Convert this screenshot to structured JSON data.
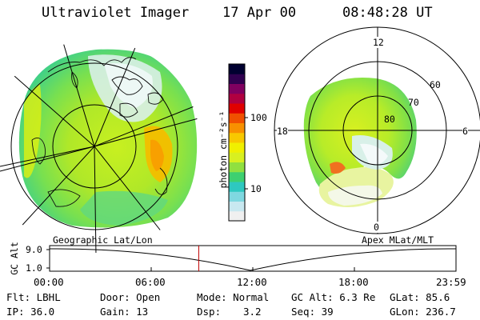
{
  "header": {
    "title": "Ultraviolet Imager",
    "date": "17 Apr 00",
    "time": "08:48:28 UT"
  },
  "left_panel": {
    "label": "Geographic Lat/Lon"
  },
  "right_panel": {
    "label": "Apex MLat/MLT",
    "mlt_labels": [
      "12",
      "18",
      "6",
      "0"
    ],
    "lat_labels": [
      "60",
      "70",
      "80"
    ]
  },
  "colorbar": {
    "unit_label": "photon cm⁻²s⁻¹",
    "ticks": [
      "100",
      "10"
    ],
    "colors": [
      "#f0f0f0",
      "#c8e8f0",
      "#7fd8e0",
      "#2ec8c0",
      "#3dd070",
      "#90e040",
      "#d8f020",
      "#f0f000",
      "#f8c800",
      "#f89000",
      "#f05000",
      "#e00000",
      "#b00040",
      "#800060",
      "#300050",
      "#000030"
    ]
  },
  "altitude_plot": {
    "axis_label": "GC Alt",
    "y_ticks": [
      "9.0",
      "1.0"
    ],
    "x_ticks": [
      "00:00",
      "06:00",
      "12:00",
      "18:00",
      "23:59"
    ],
    "current_time_fraction": 0.367
  },
  "info": {
    "flt": "Flt: LBHL",
    "ip": "IP: 36.0",
    "door": "Door: Open",
    "gain": "Gain: 13",
    "mode": "Mode: Normal",
    "dsp_label": "Dsp:",
    "dsp_value": "3.2",
    "gc_alt": "GC Alt: 6.3 Re",
    "seq": "Seq: 39",
    "glat": "GLat:  85.6",
    "glon": "GLon: 236.7"
  }
}
